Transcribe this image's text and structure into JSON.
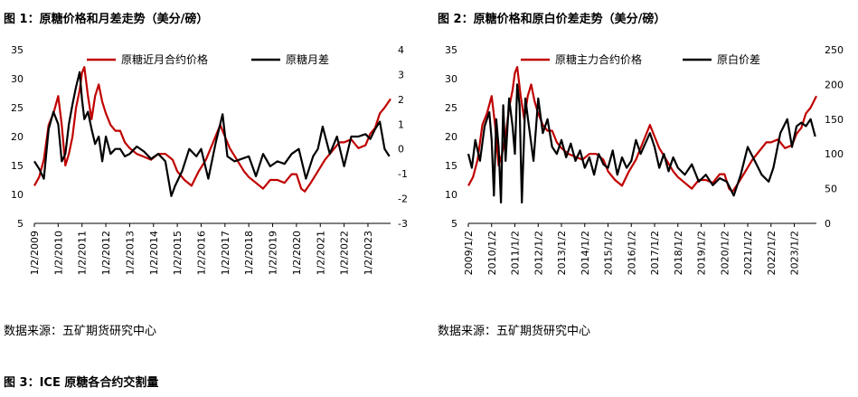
{
  "charts": [
    {
      "id": "fig1",
      "title": "图 1：原糖价格和月差走势（美分/磅）",
      "source": "数据来源：五矿期货研究中心"
    },
    {
      "id": "fig2",
      "title": "图 2：原糖价格和原白价差走势（美分/磅）",
      "source": "数据来源：五矿期货研究中心"
    }
  ],
  "footer_title": "图 3：ICE 原糖各合约交割量",
  "colors": {
    "red": "#c00000",
    "black": "#000000"
  },
  "chart_data": [
    {
      "type": "line",
      "title": "图 1：原糖价格和月差走势（美分/磅）",
      "x_start": 2009.0,
      "x_end": 2023.95,
      "x_tick_labels": [
        "1/2/2009",
        "1/2/2010",
        "1/2/2011",
        "1/2/2012",
        "1/2/2013",
        "1/2/2014",
        "1/2/2015",
        "1/2/2016",
        "1/2/2017",
        "1/2/2018",
        "1/2/2019",
        "1/2/2020",
        "1/2/2021",
        "1/2/2022",
        "1/2/2023"
      ],
      "y_left": {
        "min": 5,
        "max": 35,
        "ticks": [
          5,
          10,
          15,
          20,
          25,
          30,
          35
        ]
      },
      "y_right": {
        "min": -3,
        "max": 4,
        "ticks": [
          -3,
          -2,
          -1,
          0,
          1,
          2,
          3,
          4
        ]
      },
      "legend": "top",
      "series": [
        {
          "name": "原糖近月合约价格",
          "axis": "left",
          "color": "#c00000",
          "x": [
            2009.0,
            2009.2,
            2009.4,
            2009.6,
            2009.8,
            2010.0,
            2010.15,
            2010.3,
            2010.45,
            2010.6,
            2010.75,
            2010.9,
            2011.0,
            2011.1,
            2011.25,
            2011.4,
            2011.55,
            2011.7,
            2011.85,
            2012.0,
            2012.2,
            2012.4,
            2012.6,
            2012.8,
            2013.0,
            2013.3,
            2013.6,
            2013.9,
            2014.2,
            2014.5,
            2014.8,
            2015.0,
            2015.3,
            2015.6,
            2015.9,
            2016.2,
            2016.5,
            2016.8,
            2017.0,
            2017.2,
            2017.5,
            2017.8,
            2018.0,
            2018.3,
            2018.6,
            2018.9,
            2019.2,
            2019.5,
            2019.8,
            2020.0,
            2020.2,
            2020.35,
            2020.6,
            2020.9,
            2021.2,
            2021.5,
            2021.8,
            2022.0,
            2022.3,
            2022.6,
            2022.9,
            2023.1,
            2023.3,
            2023.5,
            2023.7,
            2023.95
          ],
          "y": [
            11.5,
            13,
            16,
            22,
            24,
            27,
            22,
            15,
            17,
            20,
            25,
            28,
            31,
            32,
            27,
            23,
            27,
            29,
            26,
            24,
            22,
            21,
            21,
            19,
            18,
            17,
            16.5,
            16,
            17,
            17,
            16,
            14,
            12.5,
            11.5,
            14,
            16,
            19,
            22,
            20,
            18,
            16,
            14,
            13,
            12,
            11,
            12.5,
            12.5,
            12,
            13.5,
            13.5,
            11,
            10.5,
            12,
            14,
            16,
            17.5,
            19,
            19,
            19.5,
            18,
            18.5,
            20.5,
            21.5,
            24,
            25,
            26.5
          ]
        },
        {
          "name": "原糖月差",
          "axis": "right",
          "color": "#000000",
          "x": [
            2009.0,
            2009.2,
            2009.4,
            2009.6,
            2009.8,
            2010.0,
            2010.15,
            2010.3,
            2010.45,
            2010.6,
            2010.75,
            2010.9,
            2011.0,
            2011.1,
            2011.25,
            2011.4,
            2011.55,
            2011.7,
            2011.85,
            2012.0,
            2012.2,
            2012.4,
            2012.6,
            2012.8,
            2013.0,
            2013.3,
            2013.6,
            2013.9,
            2014.2,
            2014.5,
            2014.75,
            2014.9,
            2015.2,
            2015.5,
            2015.8,
            2016.0,
            2016.3,
            2016.6,
            2016.9,
            2017.1,
            2017.4,
            2017.7,
            2018.0,
            2018.3,
            2018.6,
            2018.9,
            2019.2,
            2019.5,
            2019.8,
            2020.1,
            2020.4,
            2020.7,
            2020.9,
            2021.1,
            2021.4,
            2021.7,
            2022.0,
            2022.3,
            2022.6,
            2022.9,
            2023.1,
            2023.3,
            2023.5,
            2023.7,
            2023.9
          ],
          "y": [
            -0.5,
            -0.8,
            -1.2,
            0.8,
            1.5,
            1.0,
            -0.5,
            -0.2,
            1.0,
            1.8,
            2.5,
            3.1,
            2.0,
            1.2,
            1.5,
            0.8,
            0.2,
            0.5,
            -0.5,
            0.5,
            -0.2,
            0.0,
            0.0,
            -0.3,
            -0.2,
            0.1,
            -0.1,
            -0.4,
            -0.2,
            -0.5,
            -1.9,
            -1.5,
            -0.9,
            0.0,
            -0.3,
            0.0,
            -1.2,
            0.2,
            1.4,
            -0.3,
            -0.5,
            -0.4,
            -0.3,
            -1.1,
            -0.2,
            -0.7,
            -0.5,
            -0.6,
            -0.2,
            0.0,
            -1.2,
            -0.3,
            0.0,
            0.9,
            -0.2,
            0.5,
            -0.7,
            0.5,
            0.5,
            0.6,
            0.4,
            0.8,
            1.1,
            0.0,
            -0.3
          ]
        }
      ]
    },
    {
      "type": "line",
      "title": "图 2：原糖价格和原白价差走势（美分/磅）",
      "x_start": 2009.0,
      "x_end": 2023.95,
      "x_tick_labels": [
        "2009/1/2",
        "2010/1/2",
        "2011/1/2",
        "2012/1/2",
        "2013/1/2",
        "2014/1/2",
        "2015/1/2",
        "2016/1/2",
        "2017/1/2",
        "2018/1/2",
        "2019/1/2",
        "2020/1/2",
        "2021/1/2",
        "2022/1/2",
        "2023/1/2"
      ],
      "y_left": {
        "min": 5,
        "max": 35,
        "ticks": [
          5,
          10,
          15,
          20,
          25,
          30,
          35
        ]
      },
      "y_right": {
        "min": 0,
        "max": 250,
        "ticks": [
          0,
          50,
          100,
          150,
          200,
          250
        ]
      },
      "legend": "top",
      "series": [
        {
          "name": "原糖主力合约价格",
          "axis": "left",
          "color": "#c00000",
          "x": [
            2009.0,
            2009.2,
            2009.4,
            2009.6,
            2009.8,
            2010.0,
            2010.15,
            2010.3,
            2010.45,
            2010.6,
            2010.75,
            2010.9,
            2011.0,
            2011.1,
            2011.25,
            2011.4,
            2011.55,
            2011.7,
            2011.85,
            2012.0,
            2012.2,
            2012.4,
            2012.6,
            2012.8,
            2013.0,
            2013.3,
            2013.6,
            2013.9,
            2014.2,
            2014.5,
            2014.8,
            2015.0,
            2015.3,
            2015.6,
            2015.9,
            2016.2,
            2016.5,
            2016.8,
            2017.0,
            2017.2,
            2017.5,
            2017.8,
            2018.0,
            2018.3,
            2018.6,
            2018.9,
            2019.2,
            2019.5,
            2019.8,
            2020.0,
            2020.2,
            2020.35,
            2020.6,
            2020.9,
            2021.2,
            2021.5,
            2021.8,
            2022.0,
            2022.3,
            2022.6,
            2022.9,
            2023.1,
            2023.3,
            2023.5,
            2023.7,
            2023.95
          ],
          "y": [
            11.5,
            13,
            16,
            22,
            24,
            27,
            22,
            15,
            17,
            20,
            25,
            28,
            31,
            32,
            27,
            23,
            27,
            29,
            26,
            24,
            22,
            21,
            21,
            19,
            18,
            17,
            16.5,
            16,
            17,
            17,
            16,
            14,
            12.5,
            11.5,
            14,
            16,
            19,
            22,
            20,
            18,
            16,
            14,
            13,
            12,
            11,
            12.5,
            12.5,
            12,
            13.5,
            13.5,
            11,
            10.5,
            12,
            14,
            16,
            17.5,
            19,
            19,
            19.5,
            18,
            18.5,
            20.5,
            21.5,
            24,
            25,
            27
          ]
        },
        {
          "name": "原白价差",
          "axis": "right",
          "color": "#000000",
          "x": [
            2009.0,
            2009.15,
            2009.3,
            2009.5,
            2009.7,
            2009.9,
            2010.0,
            2010.1,
            2010.2,
            2010.3,
            2010.4,
            2010.5,
            2010.6,
            2010.75,
            2010.9,
            2011.0,
            2011.1,
            2011.2,
            2011.3,
            2011.45,
            2011.6,
            2011.8,
            2012.0,
            2012.2,
            2012.4,
            2012.6,
            2012.8,
            2013.0,
            2013.2,
            2013.4,
            2013.6,
            2013.8,
            2014.0,
            2014.2,
            2014.4,
            2014.6,
            2014.8,
            2015.0,
            2015.2,
            2015.4,
            2015.6,
            2015.8,
            2016.0,
            2016.2,
            2016.4,
            2016.6,
            2016.8,
            2017.0,
            2017.2,
            2017.4,
            2017.6,
            2017.8,
            2018.0,
            2018.3,
            2018.6,
            2018.9,
            2019.2,
            2019.5,
            2019.8,
            2020.1,
            2020.4,
            2020.7,
            2021.0,
            2021.3,
            2021.6,
            2021.9,
            2022.1,
            2022.4,
            2022.7,
            2022.9,
            2023.1,
            2023.3,
            2023.5,
            2023.7,
            2023.9
          ],
          "y": [
            100,
            80,
            120,
            90,
            140,
            160,
            120,
            40,
            150,
            110,
            30,
            170,
            90,
            180,
            140,
            100,
            200,
            170,
            30,
            180,
            140,
            90,
            180,
            130,
            150,
            110,
            100,
            120,
            95,
            115,
            90,
            105,
            80,
            95,
            70,
            100,
            85,
            80,
            105,
            70,
            95,
            80,
            90,
            120,
            100,
            115,
            130,
            110,
            80,
            100,
            75,
            95,
            80,
            70,
            85,
            60,
            70,
            55,
            65,
            60,
            40,
            70,
            110,
            90,
            70,
            60,
            80,
            130,
            150,
            110,
            140,
            145,
            140,
            150,
            125
          ]
        }
      ]
    }
  ]
}
